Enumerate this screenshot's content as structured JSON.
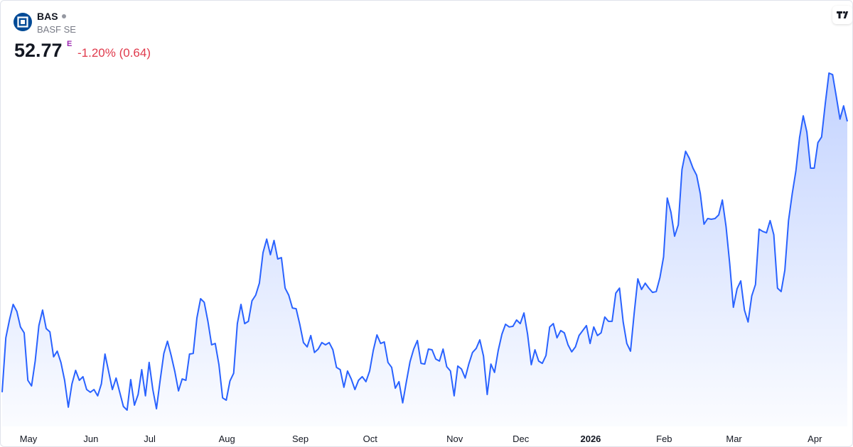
{
  "header": {
    "symbol": "BAS",
    "name": "BASF SE",
    "price": 52.77,
    "price_flag": "E",
    "change": "-1.20% (0.64)"
  },
  "chart_data": {
    "type": "area",
    "series": [
      {
        "color": "#2962ff",
        "values": [
          40.78,
          43.19,
          43.98,
          44.67,
          44.36,
          43.67,
          43.41,
          41.31,
          41.06,
          42.16,
          43.73,
          44.42,
          43.6,
          43.45,
          42.35,
          42.6,
          42.1,
          41.31,
          40.12,
          41.15,
          41.75,
          41.31,
          41.47,
          40.9,
          40.78,
          40.9,
          40.62,
          41.15,
          42.47,
          41.69,
          40.9,
          41.41,
          40.78,
          40.15,
          39.99,
          41.34,
          40.21,
          40.68,
          41.78,
          40.62,
          42.1,
          40.9,
          40.05,
          41.31,
          42.5,
          43.04,
          42.41,
          41.69,
          40.84,
          41.37,
          41.31,
          42.47,
          42.5,
          44.07,
          44.92,
          44.76,
          43.92,
          42.88,
          42.94,
          42.0,
          40.53,
          40.43,
          41.28,
          41.62,
          43.82,
          44.67,
          43.82,
          43.92,
          44.83,
          45.08,
          45.61,
          46.96,
          47.56,
          46.87,
          47.5,
          46.68,
          46.74,
          45.39,
          45.08,
          44.51,
          44.48,
          43.79,
          42.98,
          42.79,
          43.29,
          42.54,
          42.69,
          42.98,
          42.88,
          42.98,
          42.66,
          41.88,
          41.78,
          41.0,
          41.72,
          41.37,
          40.9,
          41.31,
          41.47,
          41.25,
          41.72,
          42.63,
          43.32,
          42.94,
          43.01,
          42.1,
          41.88,
          40.96,
          41.25,
          40.31,
          41.25,
          42.13,
          42.69,
          43.07,
          42.06,
          42.03,
          42.69,
          42.66,
          42.25,
          42.16,
          42.69,
          41.91,
          41.72,
          40.62,
          41.94,
          41.81,
          41.41,
          42.03,
          42.54,
          42.72,
          43.1,
          42.38,
          40.68,
          42.03,
          41.66,
          42.63,
          43.35,
          43.79,
          43.67,
          43.7,
          43.98,
          43.82,
          44.29,
          43.35,
          42.0,
          42.66,
          42.16,
          42.06,
          42.41,
          43.67,
          43.82,
          43.19,
          43.51,
          43.41,
          42.88,
          42.57,
          42.79,
          43.29,
          43.51,
          43.73,
          42.94,
          43.67,
          43.29,
          43.41,
          44.11,
          43.92,
          43.92,
          45.17,
          45.39,
          43.89,
          42.94,
          42.6,
          44.29,
          45.8,
          45.33,
          45.61,
          45.39,
          45.2,
          45.24,
          45.86,
          46.77,
          49.38,
          48.75,
          47.69,
          48.19,
          50.64,
          51.45,
          51.14,
          50.7,
          50.39,
          49.57,
          48.22,
          48.47,
          48.44,
          48.47,
          48.63,
          49.29,
          48.12,
          46.46,
          44.54,
          45.36,
          45.71,
          44.42,
          43.89,
          45.05,
          45.55,
          48.0,
          47.9,
          47.84,
          48.38,
          47.75,
          45.39,
          45.24,
          46.18,
          48.38,
          49.57,
          50.57,
          52.05,
          53.02,
          52.3,
          50.7,
          50.7,
          51.83,
          52.08,
          53.56,
          54.91,
          54.84,
          53.87,
          52.87,
          53.46,
          52.77
        ]
      }
    ],
    "xticks": [
      {
        "value": 6,
        "label": "May"
      },
      {
        "value": 23,
        "label": "Jun"
      },
      {
        "value": 39,
        "label": "Jul"
      },
      {
        "value": 60,
        "label": "Aug"
      },
      {
        "value": 80,
        "label": "Sep"
      },
      {
        "value": 99,
        "label": "Oct"
      },
      {
        "value": 122,
        "label": "Nov"
      },
      {
        "value": 140,
        "label": "Dec"
      },
      {
        "value": 159,
        "label": "2026"
      },
      {
        "value": 179,
        "label": "Feb"
      },
      {
        "value": 198,
        "label": "Mar"
      },
      {
        "value": 220,
        "label": "Apr"
      }
    ]
  }
}
